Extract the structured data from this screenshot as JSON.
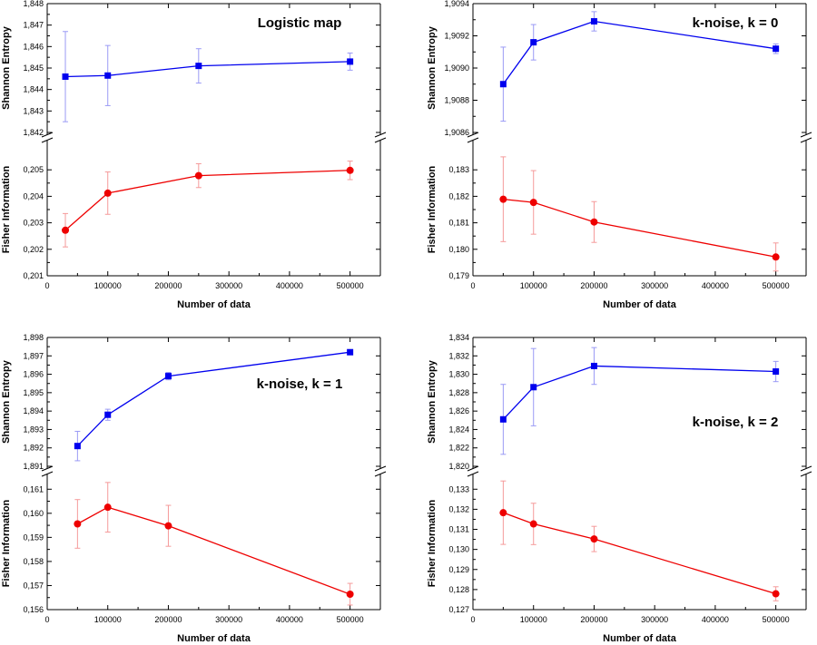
{
  "chart_data": [
    {
      "type": "line",
      "title": "Logistic  map",
      "xlabel": "Number  of  data",
      "xlim": [
        0,
        550000
      ],
      "xticks": [
        0,
        100000,
        200000,
        300000,
        400000,
        500000
      ],
      "top": {
        "ylabel": "Shannon  Entropy",
        "ylim": [
          1.842,
          1.848
        ],
        "yticks": [
          "1,842",
          "1,843",
          "1,844",
          "1,845",
          "1,846",
          "1,847",
          "1,848"
        ],
        "color": "#0000ee",
        "marker": "square",
        "x": [
          30000,
          100000,
          250000,
          500000
        ],
        "y": [
          1.8446,
          1.84465,
          1.8451,
          1.8453
        ],
        "err": [
          0.0021,
          0.0014,
          0.0008,
          0.0004
        ]
      },
      "bottom": {
        "ylabel": "Fisher  Information",
        "ylim": [
          0.201,
          0.206
        ],
        "yticks": [
          "0,201",
          "0,202",
          "0,203",
          "0,204",
          "0,205"
        ],
        "color": "#ee0000",
        "marker": "circle",
        "x": [
          30000,
          100000,
          250000,
          500000
        ],
        "y": [
          0.20272,
          0.20412,
          0.20478,
          0.20498
        ],
        "err": [
          0.00063,
          0.0008,
          0.00045,
          0.00035
        ]
      }
    },
    {
      "type": "line",
      "title": "k-noise, k = 0",
      "xlabel": "Number  of  data",
      "xlim": [
        0,
        550000
      ],
      "xticks": [
        0,
        100000,
        200000,
        300000,
        400000,
        500000
      ],
      "top": {
        "ylabel": "Shannon  Entropy",
        "ylim": [
          1.9086,
          1.9094
        ],
        "yticks": [
          "1,9086",
          "1,9088",
          "1,9090",
          "1,9092",
          "1,9094"
        ],
        "color": "#0000ee",
        "marker": "square",
        "x": [
          50000,
          100000,
          200000,
          500000
        ],
        "y": [
          1.9089,
          1.90916,
          1.90929,
          1.90912
        ],
        "err": [
          0.00023,
          0.00011,
          6e-05,
          3e-05
        ]
      },
      "bottom": {
        "ylabel": "Fisher  Information",
        "ylim": [
          0.179,
          0.184
        ],
        "yticks": [
          "0,179",
          "0,180",
          "0,181",
          "0,182",
          "0,183"
        ],
        "color": "#ee0000",
        "marker": "circle",
        "x": [
          50000,
          100000,
          200000,
          500000
        ],
        "y": [
          0.18189,
          0.18177,
          0.18103,
          0.17971
        ],
        "err": [
          0.0016,
          0.0012,
          0.00077,
          0.00053
        ]
      }
    },
    {
      "type": "line",
      "title": "k-noise, k = 1",
      "xlabel": "Number  of  data",
      "xlim": [
        0,
        550000
      ],
      "xticks": [
        0,
        100000,
        200000,
        300000,
        400000,
        500000
      ],
      "top": {
        "ylabel": "Shannon  Entropy",
        "ylim": [
          1.891,
          1.898
        ],
        "yticks": [
          "1,891",
          "1,892",
          "1,893",
          "1,894",
          "1,895",
          "1,896",
          "1,897",
          "1,898"
        ],
        "color": "#0000ee",
        "marker": "square",
        "x": [
          50000,
          100000,
          200000,
          500000
        ],
        "y": [
          1.8921,
          1.8938,
          1.8959,
          1.8972
        ],
        "err": [
          0.0008,
          0.0003,
          0.0002,
          0.0001
        ]
      },
      "bottom": {
        "ylabel": "Fisher  Information",
        "ylim": [
          0.156,
          0.1615
        ],
        "yticks": [
          "0,156",
          "0,157",
          "0,158",
          "0,159",
          "0,160",
          "0,161"
        ],
        "color": "#ee0000",
        "marker": "circle",
        "x": [
          50000,
          100000,
          200000,
          500000
        ],
        "y": [
          0.15956,
          0.16025,
          0.15948,
          0.15664
        ],
        "err": [
          0.00101,
          0.00103,
          0.00085,
          0.00045
        ]
      }
    },
    {
      "type": "line",
      "title": "k-noise, k = 2",
      "xlabel": "Number  of  data",
      "xlim": [
        0,
        550000
      ],
      "xticks": [
        0,
        100000,
        200000,
        300000,
        400000,
        500000
      ],
      "top": {
        "ylabel": "Shannon  Entropy",
        "ylim": [
          1.82,
          1.834
        ],
        "yticks": [
          "1,820",
          "1,822",
          "1,824",
          "1,826",
          "1,828",
          "1,830",
          "1,832",
          "1,834"
        ],
        "color": "#0000ee",
        "marker": "square",
        "x": [
          50000,
          100000,
          200000,
          500000
        ],
        "y": [
          1.8251,
          1.8286,
          1.8309,
          1.8303
        ],
        "err": [
          0.0038,
          0.0042,
          0.002,
          0.0011
        ]
      },
      "bottom": {
        "ylabel": "Fisher  Information",
        "ylim": [
          0.127,
          0.1336
        ],
        "yticks": [
          "0,127",
          "0,128",
          "0,129",
          "0,130",
          "0,131",
          "0,132",
          "0,133"
        ],
        "color": "#ee0000",
        "marker": "circle",
        "x": [
          50000,
          100000,
          200000,
          500000
        ],
        "y": [
          0.13183,
          0.13127,
          0.13052,
          0.12779
        ],
        "err": [
          0.00158,
          0.00103,
          0.00063,
          0.00035
        ]
      }
    }
  ]
}
